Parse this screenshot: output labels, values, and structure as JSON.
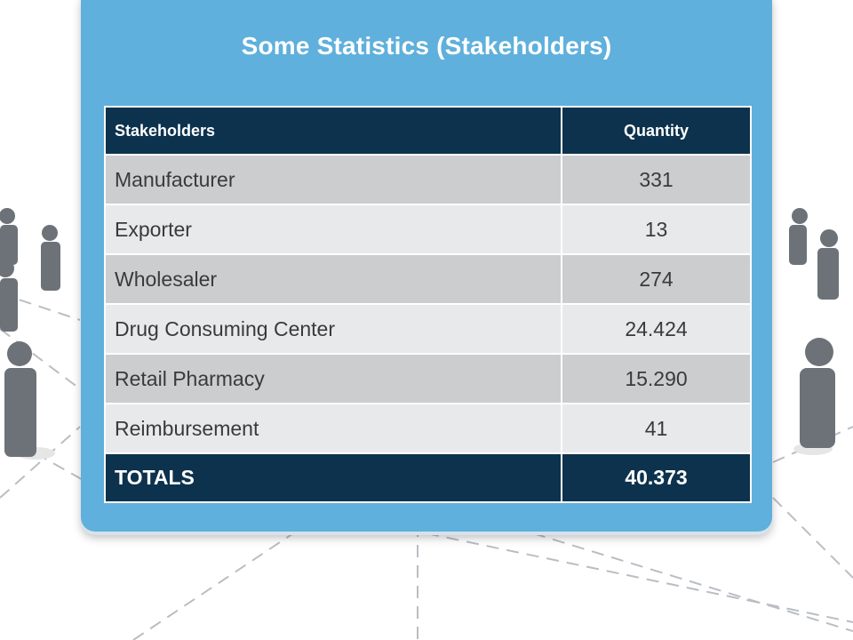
{
  "slide": {
    "title": "Some Statistics (Stakeholders)"
  },
  "table": {
    "headers": {
      "stakeholders": "Stakeholders",
      "quantity": "Quantity"
    },
    "rows": [
      {
        "stakeholder": "Manufacturer",
        "quantity": "331"
      },
      {
        "stakeholder": "Exporter",
        "quantity": "13"
      },
      {
        "stakeholder": "Wholesaler",
        "quantity": "274"
      },
      {
        "stakeholder": "Drug Consuming Center",
        "quantity": "24.424"
      },
      {
        "stakeholder": "Retail Pharmacy",
        "quantity": "15.290"
      },
      {
        "stakeholder": "Reimbursement",
        "quantity": "41"
      }
    ],
    "totals": {
      "label": "TOTALS",
      "quantity": "40.373"
    }
  },
  "colors": {
    "panel": "#5fb0dc",
    "header_bg": "#0c324d",
    "row_dark": "#cccdcf",
    "row_light": "#e8e9ea"
  },
  "decor": {
    "background_icon": "people-network-icon"
  }
}
